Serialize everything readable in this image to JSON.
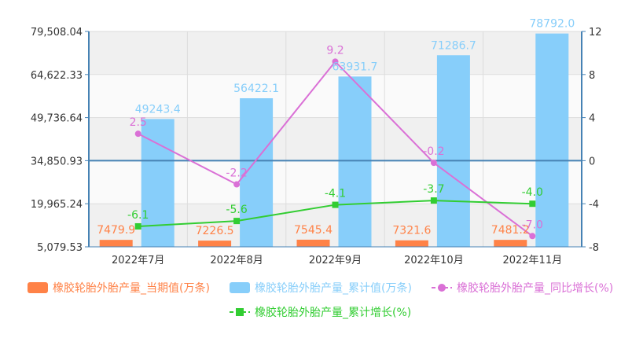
{
  "chart_data": {
    "type": "bar",
    "categories": [
      "2022年7月",
      "2022年8月",
      "2022年9月",
      "2022年10月",
      "2022年11月"
    ],
    "left_axis": {
      "min": 5079.53,
      "max": 79508.04,
      "ticks": [
        "79,508.04",
        "64,622.33",
        "49,736.64",
        "34,850.93",
        "19,965.24",
        "5,079.53"
      ]
    },
    "right_axis": {
      "min": -8,
      "max": 12,
      "ticks": [
        "12",
        "8",
        "4",
        "0",
        "-4",
        "-8"
      ]
    },
    "grid": true,
    "legend_position": "bottom",
    "series": [
      {
        "name": "橡胶轮胎外胎产量_当期值(万条)",
        "kind": "bar",
        "axis": "left",
        "color": "#ff8247",
        "values": [
          7479.9,
          7226.5,
          7545.4,
          7321.6,
          7481.2
        ],
        "labels": [
          "7479.9",
          "7226.5",
          "7545.4",
          "7321.6",
          "7481.2"
        ]
      },
      {
        "name": "橡胶轮胎外胎产量_累计值(万条)",
        "kind": "bar",
        "axis": "left",
        "color": "#87cefa",
        "values": [
          49243.4,
          56422.1,
          63931.7,
          71286.7,
          78792.0
        ],
        "labels": [
          "49243.4",
          "56422.1",
          "63931.7",
          "71286.7",
          "78792.0"
        ]
      },
      {
        "name": "橡胶轮胎外胎产量_同比增长(%)",
        "kind": "line",
        "axis": "right",
        "color": "#da70d6",
        "marker": "circle",
        "values": [
          2.5,
          -2.2,
          9.2,
          -0.2,
          -7.0
        ],
        "labels": [
          "2.5",
          "-2.2",
          "9.2",
          "-0.2",
          "-7.0"
        ]
      },
      {
        "name": "橡胶轮胎外胎产量_累计增长(%)",
        "kind": "line",
        "axis": "right",
        "color": "#32cd32",
        "marker": "square",
        "values": [
          -6.1,
          -5.6,
          -4.1,
          -3.7,
          -4.0
        ],
        "labels": [
          "-6.1",
          "-5.6",
          "-4.1",
          "-3.7",
          "-4.0"
        ]
      }
    ]
  }
}
